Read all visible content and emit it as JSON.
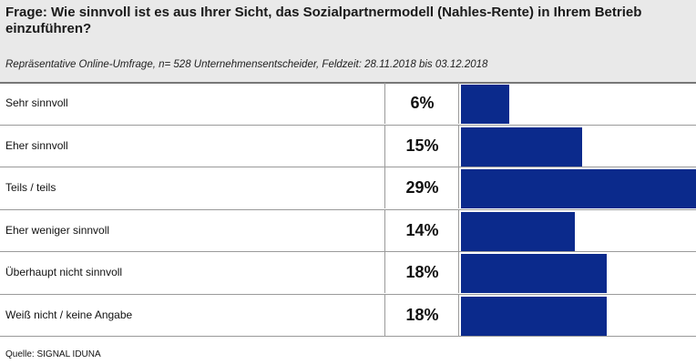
{
  "question": "Frage:  Wie sinnvoll ist es aus Ihrer Sicht, das Sozialpartnermodell (Nahles-Rente) in Ihrem Betrieb einzuführen?",
  "subtitle": "Repräsentative Online-Umfrage, n= 528 Unternehmensentscheider, Feldzeit: 28.11.2018 bis 03.12.2018",
  "source": "Quelle: SIGNAL IDUNA",
  "bar_color": "#0b2a8c",
  "chart_data": {
    "type": "bar",
    "orientation": "horizontal",
    "title": "",
    "categories": [
      "Sehr sinnvoll",
      "Eher sinnvoll",
      "Teils / teils",
      "Eher weniger sinnvoll",
      "Überhaupt nicht sinnvoll",
      "Weiß nicht / keine Angabe"
    ],
    "values": [
      6,
      15,
      29,
      14,
      18,
      18
    ],
    "value_labels": [
      "6%",
      "15%",
      "29%",
      "14%",
      "18%",
      "18%"
    ],
    "unit": "%",
    "xlim": [
      0,
      29
    ],
    "grid": false
  }
}
